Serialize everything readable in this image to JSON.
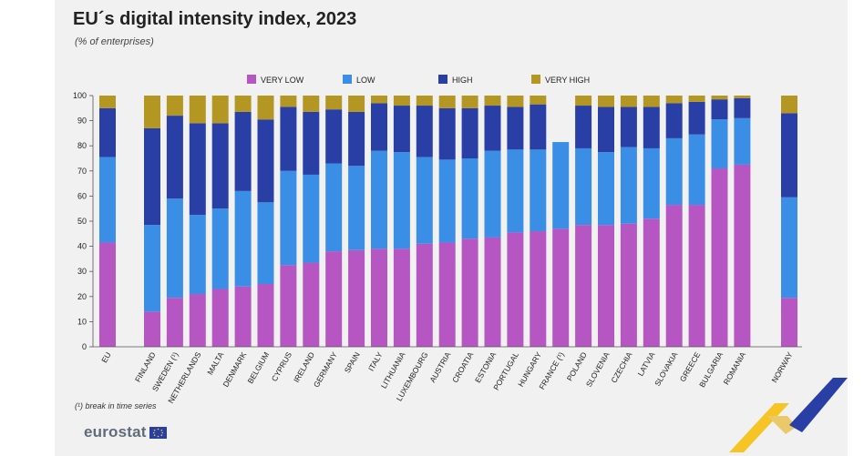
{
  "header": {
    "title": "EU´s digital intensity index, 2023",
    "subtitle": "(% of enterprises)"
  },
  "footnote": "(¹) break in time series",
  "brand": {
    "name": "eurostat"
  },
  "colors": {
    "very_low": "#b656c2",
    "low": "#3b8ee6",
    "high": "#2a3fa6",
    "very_high": "#b49623",
    "background": "#f1f1f1",
    "axis": "#333333"
  },
  "chart_data": {
    "type": "bar",
    "stacked": true,
    "title": "EU´s digital intensity index, 2023",
    "subtitle": "(% of enterprises)",
    "xlabel": "",
    "ylabel": "",
    "ylim": [
      0,
      100
    ],
    "yticks": [
      0,
      10,
      20,
      30,
      40,
      50,
      60,
      70,
      80,
      90,
      100
    ],
    "grid": false,
    "legend_position": "top",
    "categories": [
      "EU",
      "FINLAND",
      "SWEDEN (¹)",
      "NETHERLANDS",
      "MALTA",
      "DENMARK",
      "BELGIUM",
      "CYPRUS",
      "IRELAND",
      "GERMANY",
      "SPAIN",
      "ITALY",
      "LITHUANIA",
      "LUXEMBOURG",
      "AUSTRIA",
      "CROATIA",
      "ESTONIA",
      "PORTUGAL",
      "HUNGARY",
      "FRANCE (¹)",
      "POLAND",
      "SLOVENIA",
      "CZECHIA",
      "LATVIA",
      "SLOVAKIA",
      "GREECE",
      "BULGARIA",
      "ROMANIA",
      "NORWAY"
    ],
    "series": [
      {
        "name": "VERY LOW",
        "color": "#b656c2",
        "values": [
          41.5,
          14,
          19.5,
          21,
          23,
          24,
          25,
          32.5,
          33.5,
          38,
          38.5,
          39,
          39,
          41,
          41.5,
          43,
          43.5,
          45.5,
          46,
          47,
          48.5,
          48.5,
          49,
          51,
          56.5,
          56.5,
          71,
          72.5,
          19.5
        ]
      },
      {
        "name": "LOW",
        "color": "#3b8ee6",
        "values": [
          34,
          34.5,
          39.5,
          31.5,
          32,
          38,
          32.5,
          37.5,
          35,
          35,
          33.5,
          39,
          38.5,
          34.5,
          33,
          32,
          34.5,
          33,
          32.5,
          34.5,
          30.5,
          29,
          30.5,
          28,
          26.5,
          28,
          19.5,
          18.5,
          40
        ]
      },
      {
        "name": "HIGH",
        "color": "#2a3fa6",
        "values": [
          19.5,
          38.5,
          33,
          36.5,
          34,
          31.5,
          33,
          25.5,
          25,
          21.5,
          21.5,
          19,
          18.5,
          20.5,
          20.5,
          20,
          18,
          17,
          18,
          0,
          17,
          18,
          16,
          16.5,
          14,
          13,
          8,
          8,
          33.5
        ]
      },
      {
        "name": "VERY HIGH",
        "color": "#b49623",
        "values": [
          5,
          13,
          8,
          11,
          11,
          6.5,
          9.5,
          4.5,
          6.5,
          5.5,
          6.5,
          3,
          4,
          4,
          5,
          5,
          4,
          4.5,
          3.5,
          0,
          4,
          4.5,
          4.5,
          4.5,
          3,
          2.5,
          1.5,
          1,
          7
        ]
      }
    ]
  }
}
